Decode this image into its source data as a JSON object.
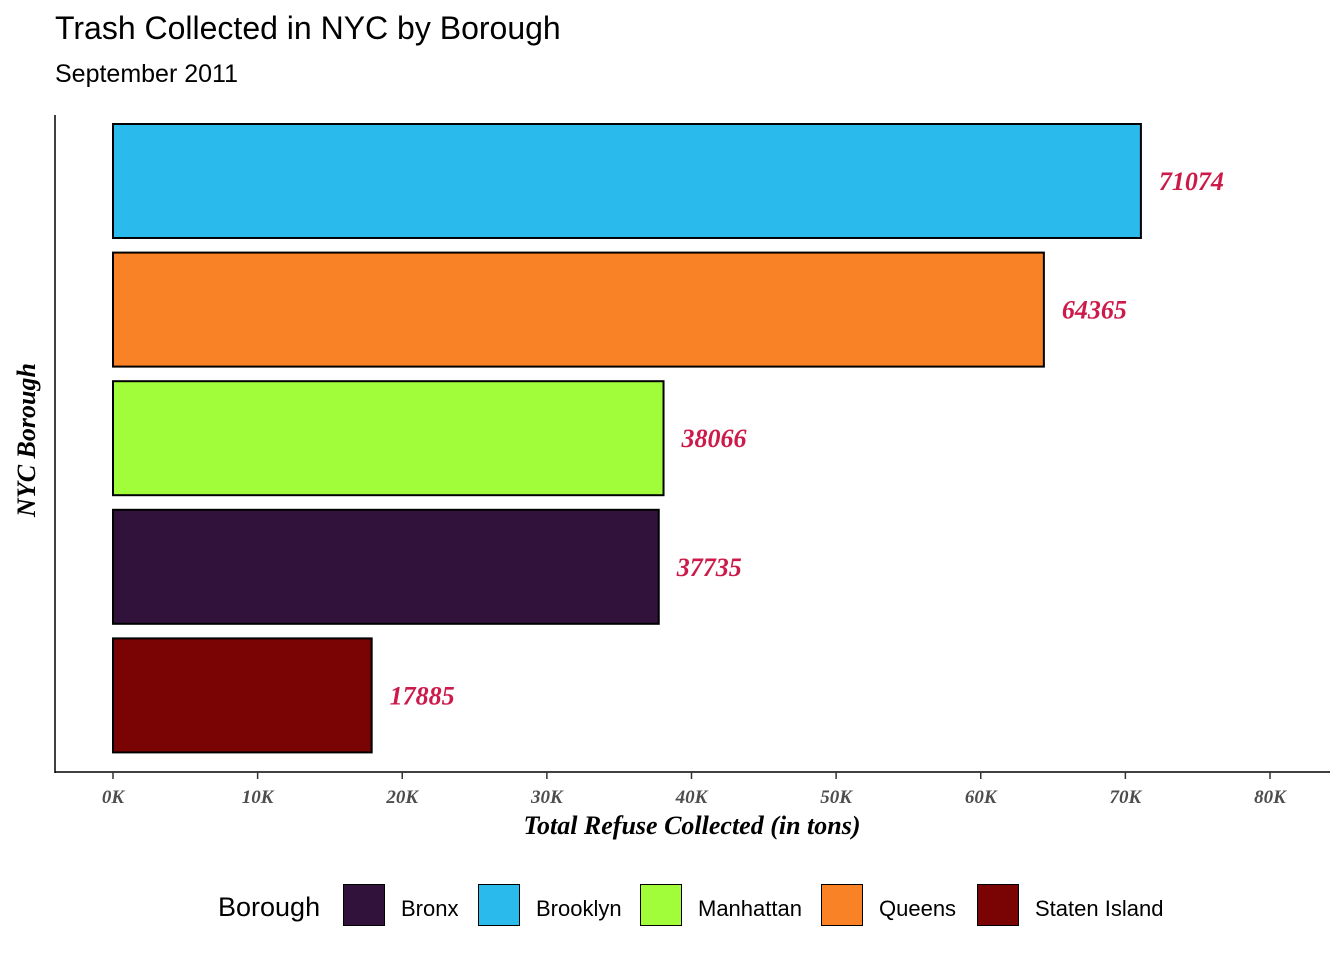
{
  "header": {
    "title": "Trash Collected in NYC by Borough",
    "subtitle": "September 2011"
  },
  "chart_data": {
    "type": "bar",
    "orientation": "horizontal",
    "title": "Trash Collected in NYC by Borough",
    "subtitle": "September 2011",
    "xlabel": "Total Refuse Collected (in tons)",
    "ylabel": "NYC Borough",
    "xlim": [
      0,
      80000
    ],
    "ticks": [
      0,
      10000,
      20000,
      30000,
      40000,
      50000,
      60000,
      70000,
      80000
    ],
    "tick_labels": [
      "0K",
      "10K",
      "20K",
      "30K",
      "40K",
      "50K",
      "60K",
      "70K",
      "80K"
    ],
    "categories": [
      "Brooklyn",
      "Queens",
      "Manhattan",
      "Bronx",
      "Staten Island"
    ],
    "values": [
      71074,
      64365,
      38066,
      37735,
      17885
    ],
    "data_labels": [
      "71074",
      "64365",
      "38066",
      "37735",
      "17885"
    ],
    "colors": [
      "#2BBAEC",
      "#FA8226",
      "#A1FC3A",
      "#30123B",
      "#7A0403"
    ],
    "label_color": "#CC1A4A",
    "grid": false,
    "legend_position": "bottom"
  },
  "legend": {
    "title": "Borough",
    "items": [
      {
        "label": "Bronx",
        "color": "#30123B"
      },
      {
        "label": "Brooklyn",
        "color": "#2BBAEC"
      },
      {
        "label": "Manhattan",
        "color": "#A1FC3A"
      },
      {
        "label": "Queens",
        "color": "#FA8226"
      },
      {
        "label": "Staten Island",
        "color": "#7A0403"
      }
    ]
  }
}
